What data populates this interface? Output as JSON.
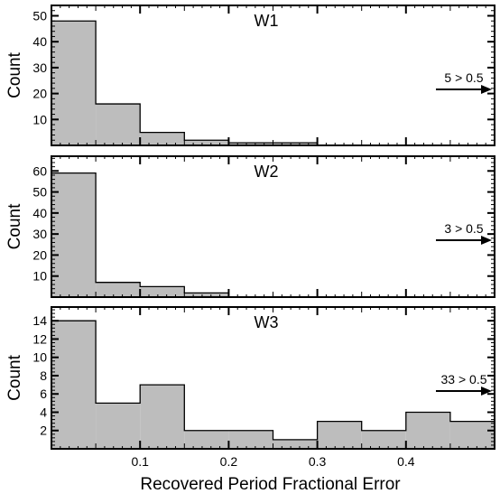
{
  "figure": {
    "xlabel": "Recovered Period Fractional Error",
    "xticks": [
      "0.1",
      "0.2",
      "0.3",
      "0.4"
    ]
  },
  "chart_data": [
    {
      "type": "bar",
      "title": "W1",
      "ylabel": "Count",
      "xlim": [
        0,
        0.5
      ],
      "ylim": [
        0,
        54
      ],
      "yticks": [
        10,
        20,
        30,
        40,
        50
      ],
      "bin_edges": [
        0,
        0.05,
        0.1,
        0.15,
        0.2,
        0.25,
        0.3,
        0.35,
        0.4,
        0.45,
        0.5
      ],
      "values": [
        48,
        16,
        5,
        2,
        1,
        1,
        0,
        0,
        0,
        0
      ],
      "annotation": "5 > 0.5",
      "fill": "#bdbdbd"
    },
    {
      "type": "bar",
      "title": "W2",
      "ylabel": "Count",
      "xlim": [
        0,
        0.5
      ],
      "ylim": [
        0,
        67
      ],
      "yticks": [
        10,
        20,
        30,
        40,
        50,
        60
      ],
      "bin_edges": [
        0,
        0.05,
        0.1,
        0.15,
        0.2,
        0.25,
        0.3,
        0.35,
        0.4,
        0.45,
        0.5
      ],
      "values": [
        59,
        7,
        5,
        2,
        0,
        0,
        0,
        0,
        0,
        0
      ],
      "annotation": "3 > 0.5",
      "fill": "#bdbdbd"
    },
    {
      "type": "bar",
      "title": "W3",
      "ylabel": "Count",
      "xlim": [
        0,
        0.5
      ],
      "ylim": [
        0,
        15.5
      ],
      "yticks": [
        2,
        4,
        6,
        8,
        10,
        12,
        14
      ],
      "bin_edges": [
        0,
        0.05,
        0.1,
        0.15,
        0.2,
        0.25,
        0.3,
        0.35,
        0.4,
        0.45,
        0.5
      ],
      "values": [
        14,
        5,
        7,
        2,
        2,
        1,
        3,
        2,
        4,
        3
      ],
      "annotation": "33 > 0.5",
      "fill": "#bdbdbd"
    }
  ]
}
